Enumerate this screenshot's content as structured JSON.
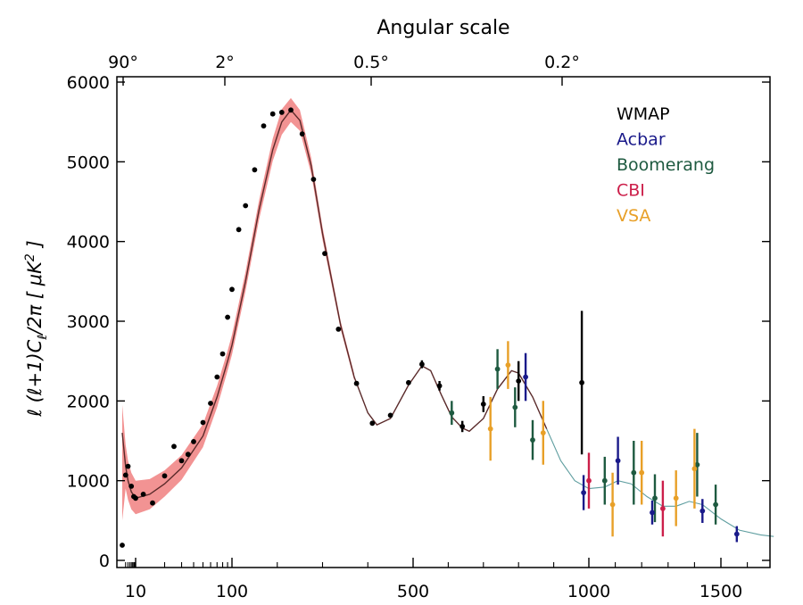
{
  "chart_data": {
    "type": "scatter",
    "title": "Angular scale",
    "ylabel": "ℓ (ℓ+1)C_ℓ /2π [ μK² ]",
    "ylabel_parts": {
      "a": "ℓ (ℓ+1)C",
      "sub": "ℓ",
      "b": "/2π [ μK",
      "sup": "2",
      "c": " ]"
    },
    "ylim": [
      0,
      6000
    ],
    "yticks": [
      "0",
      "1000",
      "2000",
      "3000",
      "4000",
      "5000",
      "6000"
    ],
    "yticks_values": [
      0,
      1000,
      2000,
      3000,
      4000,
      5000,
      6000
    ],
    "x_scale": "log below 100, linear above",
    "xlim": [
      2,
      1700
    ],
    "xticks": [
      {
        "value": 10,
        "label": "10"
      },
      {
        "value": 100,
        "label": "100"
      },
      {
        "value": 500,
        "label": "500"
      },
      {
        "value": 1000,
        "label": "1000"
      },
      {
        "value": 1500,
        "label": "1500"
      }
    ],
    "top_axis_ticks": [
      {
        "l": 2,
        "label": "90°"
      },
      {
        "l": 90,
        "label": "2°"
      },
      {
        "l": 360,
        "label": "0.5°"
      },
      {
        "l": 900,
        "label": "0.2°"
      }
    ],
    "legend": {
      "position": "top-right",
      "entries": [
        {
          "name": "WMAP",
          "color": "#000000"
        },
        {
          "name": "Acbar",
          "color": "#1a1a8a"
        },
        {
          "name": "Boomerang",
          "color": "#1e5a40"
        },
        {
          "name": "CBI",
          "color": "#cc1f4a"
        },
        {
          "name": "VSA",
          "color": "#e8a028"
        }
      ]
    },
    "band_color": "#f08080",
    "model_curve": [
      [
        2,
        1600
      ],
      [
        3,
        1180
      ],
      [
        4,
        1000
      ],
      [
        6,
        860
      ],
      [
        10,
        780
      ],
      [
        14,
        830
      ],
      [
        20,
        960
      ],
      [
        30,
        1160
      ],
      [
        50,
        1560
      ],
      [
        70,
        2050
      ],
      [
        90,
        2500
      ],
      [
        100,
        2700
      ],
      [
        130,
        3500
      ],
      [
        160,
        4400
      ],
      [
        190,
        5150
      ],
      [
        210,
        5500
      ],
      [
        230,
        5650
      ],
      [
        250,
        5520
      ],
      [
        275,
        4950
      ],
      [
        300,
        4100
      ],
      [
        340,
        2950
      ],
      [
        370,
        2300
      ],
      [
        400,
        1850
      ],
      [
        420,
        1700
      ],
      [
        450,
        1780
      ],
      [
        490,
        2200
      ],
      [
        525,
        2440
      ],
      [
        550,
        2380
      ],
      [
        580,
        2080
      ],
      [
        610,
        1800
      ],
      [
        640,
        1660
      ],
      [
        660,
        1620
      ],
      [
        700,
        1780
      ],
      [
        740,
        2150
      ],
      [
        780,
        2380
      ],
      [
        800,
        2350
      ],
      [
        840,
        2050
      ],
      [
        880,
        1650
      ],
      [
        920,
        1250
      ],
      [
        960,
        1000
      ],
      [
        1000,
        900
      ],
      [
        1060,
        920
      ],
      [
        1110,
        1000
      ],
      [
        1160,
        960
      ],
      [
        1220,
        800
      ],
      [
        1280,
        680
      ],
      [
        1330,
        680
      ],
      [
        1380,
        740
      ],
      [
        1430,
        700
      ],
      [
        1500,
        520
      ],
      [
        1570,
        380
      ],
      [
        1650,
        320
      ],
      [
        1700,
        300
      ]
    ],
    "band": [
      [
        2,
        1950,
        500
      ],
      [
        3,
        1450,
        900
      ],
      [
        4,
        1250,
        760
      ],
      [
        6,
        1100,
        640
      ],
      [
        10,
        1000,
        580
      ],
      [
        14,
        1020,
        640
      ],
      [
        20,
        1130,
        800
      ],
      [
        30,
        1320,
        1010
      ],
      [
        50,
        1710,
        1420
      ],
      [
        70,
        2190,
        1920
      ],
      [
        90,
        2630,
        2380
      ],
      [
        100,
        2830,
        2580
      ],
      [
        130,
        3620,
        3380
      ],
      [
        160,
        4520,
        4280
      ],
      [
        190,
        5290,
        5010
      ],
      [
        210,
        5660,
        5340
      ],
      [
        230,
        5800,
        5500
      ],
      [
        250,
        5650,
        5390
      ],
      [
        275,
        5050,
        4850
      ],
      [
        300,
        4180,
        4020
      ],
      [
        340,
        3000,
        2900
      ],
      [
        370,
        2340,
        2260
      ]
    ],
    "series": [
      {
        "name": "WMAP",
        "color": "#000000",
        "points": [
          [
            2,
            190,
            0
          ],
          [
            3,
            1070,
            0
          ],
          [
            4,
            1180,
            0
          ],
          [
            6,
            930,
            0
          ],
          [
            8,
            800,
            0
          ],
          [
            10,
            780,
            0
          ],
          [
            12,
            830,
            0
          ],
          [
            15,
            720,
            0
          ],
          [
            20,
            1060,
            0
          ],
          [
            25,
            1430,
            0
          ],
          [
            30,
            1250,
            0
          ],
          [
            35,
            1330,
            0
          ],
          [
            40,
            1490,
            0
          ],
          [
            50,
            1730,
            0
          ],
          [
            60,
            1970,
            0
          ],
          [
            70,
            2300,
            0
          ],
          [
            80,
            2590,
            0
          ],
          [
            90,
            3050,
            0
          ],
          [
            100,
            3400,
            0
          ],
          [
            115,
            4150,
            0
          ],
          [
            130,
            4450,
            0
          ],
          [
            150,
            4900,
            0
          ],
          [
            170,
            5450,
            0
          ],
          [
            190,
            5600,
            0
          ],
          [
            210,
            5620,
            0
          ],
          [
            230,
            5650,
            0
          ],
          [
            255,
            5350,
            0
          ],
          [
            280,
            4780,
            0
          ],
          [
            305,
            3850,
            0
          ],
          [
            335,
            2900,
            0
          ],
          [
            375,
            2220,
            0
          ],
          [
            410,
            1720,
            0
          ],
          [
            450,
            1820,
            0
          ],
          [
            490,
            2230,
            0
          ],
          [
            525,
            2460,
            50
          ],
          [
            575,
            2190,
            60
          ],
          [
            640,
            1680,
            70
          ],
          [
            700,
            1960,
            100
          ],
          [
            800,
            2250,
            250
          ],
          [
            980,
            2230,
            900
          ]
        ]
      },
      {
        "name": "Boomerang",
        "color": "#1e5a40",
        "points": [
          [
            610,
            1850,
            150
          ],
          [
            740,
            2400,
            250
          ],
          [
            790,
            1920,
            250
          ],
          [
            840,
            1510,
            250
          ],
          [
            1060,
            1000,
            300
          ],
          [
            1170,
            1100,
            400
          ],
          [
            1250,
            780,
            300
          ],
          [
            1410,
            1200,
            400
          ],
          [
            1480,
            700,
            250
          ]
        ]
      },
      {
        "name": "Acbar",
        "color": "#1a1a8a",
        "points": [
          [
            820,
            2300,
            300
          ],
          [
            985,
            850,
            220
          ],
          [
            1110,
            1250,
            300
          ],
          [
            1240,
            600,
            150
          ],
          [
            1430,
            620,
            150
          ],
          [
            1560,
            330,
            100
          ]
        ]
      },
      {
        "name": "CBI",
        "color": "#cc1f4a",
        "points": [
          [
            1000,
            1000,
            350
          ],
          [
            1280,
            650,
            350
          ]
        ]
      },
      {
        "name": "VSA",
        "color": "#e8a028",
        "points": [
          [
            720,
            1650,
            400
          ],
          [
            770,
            2450,
            300
          ],
          [
            870,
            1600,
            400
          ],
          [
            1090,
            700,
            400
          ],
          [
            1200,
            1100,
            400
          ],
          [
            1330,
            780,
            350
          ],
          [
            1400,
            1150,
            500
          ]
        ]
      }
    ]
  }
}
